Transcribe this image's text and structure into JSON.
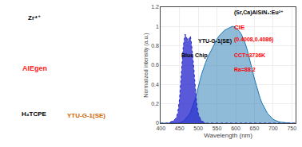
{
  "chart_data": {
    "type": "area",
    "xlabel": "Wavelength (nm)",
    "ylabel": "Normalized intensity (a.u.)",
    "xlim": [
      400,
      760
    ],
    "ylim": [
      0.0,
      1.2
    ],
    "xticks": [
      400,
      450,
      500,
      550,
      600,
      650,
      700,
      750
    ],
    "yticks": [
      0.0,
      0.2,
      0.4,
      0.6,
      0.8,
      1.0,
      1.2
    ],
    "grid": true,
    "x": [
      400,
      405,
      410,
      415,
      420,
      425,
      430,
      435,
      440,
      445,
      450,
      455,
      460,
      465,
      470,
      473,
      476,
      479,
      482,
      485,
      488,
      491,
      494,
      497,
      500,
      505,
      510,
      515,
      520,
      525,
      530,
      535,
      540,
      545,
      550,
      555,
      560,
      565,
      570,
      575,
      580,
      585,
      590,
      595,
      600,
      605,
      610,
      615,
      620,
      625,
      630,
      635,
      640,
      645,
      650,
      655,
      660,
      665,
      670,
      675,
      680,
      685,
      690,
      695,
      700,
      705,
      710,
      715,
      720,
      725,
      730,
      735,
      740,
      745,
      750,
      755,
      760
    ],
    "series": [
      {
        "name": "YTU-G-1(SE)",
        "values": [
          0.0,
          0.0,
          0.0,
          0.0,
          0.0,
          0.0,
          0.0,
          0.0,
          0.0,
          0.0,
          0.0,
          0.01,
          0.02,
          0.04,
          0.06,
          0.07,
          0.09,
          0.11,
          0.14,
          0.17,
          0.2,
          0.24,
          0.28,
          0.33,
          0.38,
          0.45,
          0.52,
          0.58,
          0.63,
          0.68,
          0.72,
          0.76,
          0.8,
          0.84,
          0.87,
          0.9,
          0.92,
          0.94,
          0.96,
          0.97,
          0.98,
          0.99,
          1.0,
          1.0,
          0.99,
          0.97,
          0.95,
          0.92,
          0.88,
          0.83,
          0.77,
          0.7,
          0.62,
          0.54,
          0.46,
          0.39,
          0.32,
          0.26,
          0.21,
          0.17,
          0.13,
          0.1,
          0.08,
          0.06,
          0.04,
          0.03,
          0.02,
          0.015,
          0.01,
          0.007,
          0.005,
          0.003,
          0.002,
          0.001,
          0.0,
          0.0,
          0.0
        ]
      },
      {
        "name": "Blue Chip",
        "color": "#2222cc",
        "line_style": "dotted",
        "values": [
          0.0,
          0.0,
          0.0,
          0.0,
          0.0,
          0.01,
          0.02,
          0.03,
          0.05,
          0.1,
          0.25,
          0.55,
          0.8,
          0.92,
          0.88,
          0.85,
          0.88,
          0.9,
          0.82,
          0.72,
          0.58,
          0.42,
          0.28,
          0.17,
          0.1,
          0.05,
          0.02,
          0.01,
          0.0,
          0.0,
          0.0,
          0.0,
          0.0,
          0.0,
          0.0,
          0.0,
          0.0,
          0.0,
          0.0,
          0.0,
          0.0,
          0.0,
          0.0,
          0.0,
          0.0,
          0.0,
          0.0,
          0.0,
          0.0,
          0.0,
          0.0,
          0.0,
          0.0,
          0.0,
          0.0,
          0.0,
          0.0,
          0.0,
          0.0,
          0.0,
          0.0,
          0.0,
          0.0,
          0.0,
          0.0,
          0.0,
          0.0,
          0.0,
          0.0,
          0.0,
          0.0,
          0.0,
          0.0,
          0.0,
          0.0,
          0.0,
          0.0
        ]
      }
    ],
    "annotations": [
      {
        "text": "(Sr,Ca)AlSiN₃:Eu²⁺",
        "color": "#000000"
      },
      {
        "text": "CIE",
        "color": "#ff0000"
      },
      {
        "text": "(0.4008,0.4086)",
        "color": "#ff0000"
      },
      {
        "text": "CCT=3736K",
        "color": "#ff0000"
      },
      {
        "text": "Ra=88.2",
        "color": "#ff0000"
      },
      {
        "text": "Zr⁴⁺",
        "color": "#000000"
      },
      {
        "text": "AIEgen",
        "color": "#ff2222"
      },
      {
        "text": "H₄TCPE",
        "color": "#000000"
      },
      {
        "text": "YTU-G-1(SE)",
        "color": "#cc6600"
      }
    ]
  }
}
